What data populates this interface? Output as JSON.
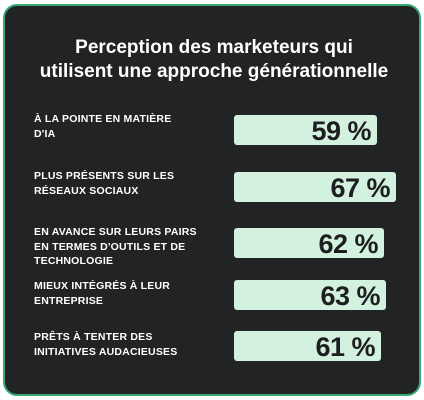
{
  "card": {
    "title_lines": [
      "Perception des marketeurs qui",
      "utilisent une approche générationnelle"
    ]
  },
  "colors": {
    "background": "#222325",
    "border": "#38a873",
    "bar": "#d2f1df",
    "text": "#ffffff",
    "value_text": "#1d1e20"
  },
  "chart_data": {
    "type": "bar",
    "orientation": "horizontal",
    "title": "Perception des marketeurs qui utilisent une approche générationnelle",
    "unit": "%",
    "categories": [
      [
        "À LA POINTE EN MATIÈRE",
        "D'IA"
      ],
      [
        "PLUS PRÉSENTS SUR LES",
        "RÉSEAUX SOCIAUX"
      ],
      [
        "EN AVANCE SUR LEURS PAIRS",
        "EN TERMES D'OUTILS ET DE",
        "TECHNOLOGIE"
      ],
      [
        "MIEUX INTÉGRÉS À LEUR",
        "ENTREPRISE"
      ],
      [
        "PRÊTS À TENTER DES",
        "INITIATIVES AUDACIEUSES"
      ]
    ],
    "values": [
      59,
      67,
      62,
      63,
      61
    ],
    "value_labels": [
      "59 %",
      "67 %",
      "62 %",
      "63 %",
      "61 %"
    ],
    "xlim": [
      0,
      67
    ],
    "grid": false,
    "legend": "none"
  }
}
